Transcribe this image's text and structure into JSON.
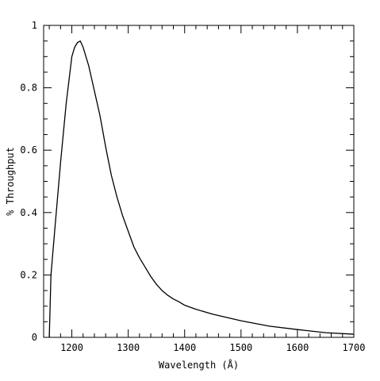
{
  "chart_data": {
    "type": "line",
    "title": "",
    "xlabel": "Wavelength (Å)",
    "ylabel": "% Throughput",
    "xlim": [
      1150,
      1700
    ],
    "ylim": [
      0,
      1
    ],
    "grid": false,
    "x_ticks": [
      {
        "value": 1200,
        "label": "1200"
      },
      {
        "value": 1300,
        "label": "1300"
      },
      {
        "value": 1400,
        "label": "1400"
      },
      {
        "value": 1500,
        "label": "1500"
      },
      {
        "value": 1600,
        "label": "1600"
      },
      {
        "value": 1700,
        "label": "1700"
      }
    ],
    "x_minor_step": 20,
    "y_ticks": [
      {
        "value": 0,
        "label": "0"
      },
      {
        "value": 0.2,
        "label": "0.2"
      },
      {
        "value": 0.4,
        "label": "0.4"
      },
      {
        "value": 0.6,
        "label": "0.6"
      },
      {
        "value": 0.8,
        "label": "0.8"
      },
      {
        "value": 1,
        "label": "1"
      }
    ],
    "y_minor_step": 0.05,
    "series": [
      {
        "color": "#000000",
        "x": [
          1160,
          1163,
          1170,
          1180,
          1190,
          1200,
          1205,
          1210,
          1215,
          1220,
          1230,
          1240,
          1250,
          1260,
          1270,
          1280,
          1290,
          1300,
          1310,
          1320,
          1330,
          1340,
          1350,
          1360,
          1370,
          1380,
          1390,
          1400,
          1420,
          1450,
          1500,
          1550,
          1600,
          1650,
          1700
        ],
        "y": [
          0.0,
          0.2,
          0.35,
          0.56,
          0.75,
          0.9,
          0.93,
          0.945,
          0.95,
          0.93,
          0.87,
          0.79,
          0.71,
          0.61,
          0.52,
          0.45,
          0.39,
          0.34,
          0.29,
          0.255,
          0.225,
          0.195,
          0.17,
          0.15,
          0.135,
          0.123,
          0.114,
          0.103,
          0.09,
          0.074,
          0.053,
          0.036,
          0.025,
          0.015,
          0.01
        ]
      }
    ]
  }
}
